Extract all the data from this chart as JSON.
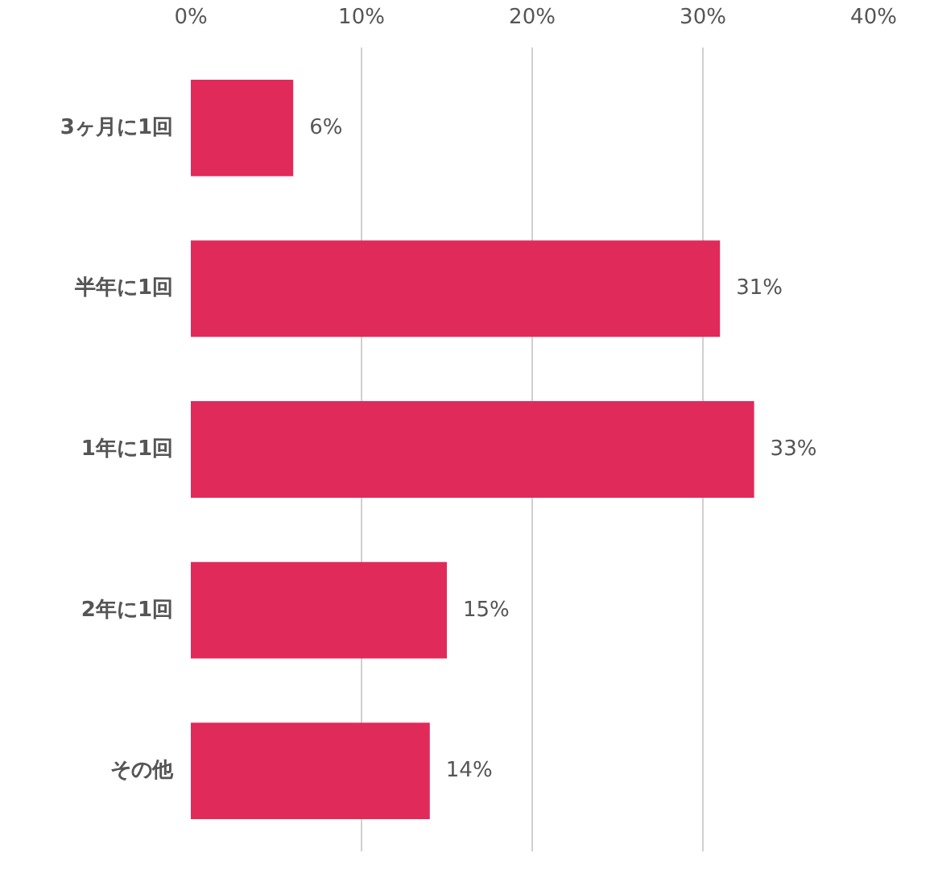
{
  "chart_data": {
    "type": "bar",
    "orientation": "horizontal",
    "categories": [
      "3ヶ月に1回",
      "半年に1回",
      "1年に1回",
      "2年に1回",
      "その他"
    ],
    "values": [
      6,
      31,
      33,
      15,
      14
    ],
    "color": "#e02b5a",
    "xlim": [
      0,
      40
    ],
    "xticks": [
      {
        "value": 0,
        "label": "0%"
      },
      {
        "value": 10,
        "label": "10%"
      },
      {
        "value": 20,
        "label": "20%"
      },
      {
        "value": 30,
        "label": "30%"
      },
      {
        "value": 40,
        "label": "40%"
      }
    ],
    "value_labels": [
      "6%",
      "31%",
      "33%",
      "15%",
      "14%"
    ],
    "grid": "x"
  }
}
